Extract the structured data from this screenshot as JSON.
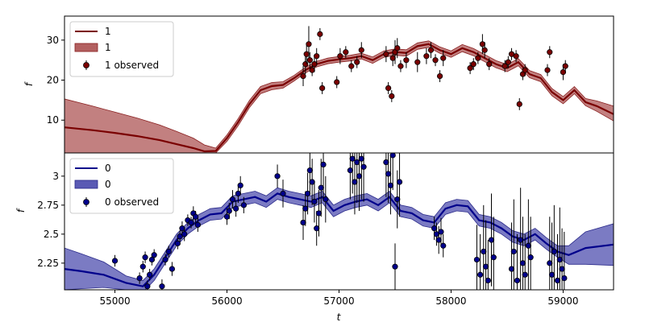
{
  "colors": {
    "red": "#7a0000",
    "red_fill": "#b36060",
    "blue": "#00008b",
    "blue_fill": "#5a5ab4"
  },
  "chart_data": [
    {
      "type": "line",
      "title": "",
      "xlabel": "",
      "ylabel": "f",
      "xlim": [
        54550,
        59450
      ],
      "ylim": [
        1.8,
        36
      ],
      "yticks": [
        10,
        20,
        30
      ],
      "grid": false,
      "legend_position": "top-left",
      "legend": [
        "1",
        "1",
        "1 observed"
      ],
      "series": [
        {
          "name": "1",
          "kind": "model-mean",
          "x": [
            54550,
            54800,
            55000,
            55200,
            55400,
            55550,
            55700,
            55800,
            55900,
            56000,
            56100,
            56200,
            56300,
            56400,
            56500,
            56600,
            56700,
            56800,
            56900,
            57000,
            57100,
            57200,
            57300,
            57400,
            57500,
            57600,
            57700,
            57800,
            57900,
            58000,
            58100,
            58200,
            58300,
            58400,
            58500,
            58600,
            58700,
            58800,
            58900,
            59000,
            59100,
            59200,
            59300,
            59450
          ],
          "y": [
            8.2,
            7.5,
            6.8,
            6.0,
            5.0,
            4.0,
            3.0,
            2.2,
            2.3,
            5.5,
            9.5,
            14.0,
            17.5,
            18.5,
            18.8,
            20.5,
            22.5,
            24.0,
            24.8,
            25.2,
            25.5,
            26.0,
            25.0,
            26.5,
            27.0,
            26.8,
            28.5,
            29.0,
            27.5,
            26.5,
            28.0,
            27.0,
            25.5,
            24.0,
            23.0,
            24.5,
            21.5,
            20.5,
            17.0,
            15.0,
            17.5,
            14.5,
            13.5,
            11.5
          ]
        },
        {
          "name": "1",
          "kind": "uncertainty-band",
          "x": [
            54550,
            54800,
            55000,
            55200,
            55400,
            55550,
            55700,
            55800,
            55900,
            56000,
            56100,
            56200,
            56300,
            56400,
            56500,
            56600,
            56700,
            56800,
            56900,
            57000,
            57100,
            57200,
            57300,
            57400,
            57500,
            57600,
            57700,
            57800,
            57900,
            58000,
            58100,
            58200,
            58300,
            58400,
            58500,
            58600,
            58700,
            58800,
            58900,
            59000,
            59100,
            59200,
            59300,
            59450
          ],
          "y_upper": [
            15.3,
            13.5,
            12.0,
            10.5,
            8.8,
            7.2,
            5.5,
            3.8,
            3.0,
            6.3,
            10.4,
            14.9,
            18.4,
            19.4,
            19.6,
            21.2,
            23.2,
            24.7,
            25.5,
            25.9,
            26.2,
            26.7,
            25.8,
            27.3,
            27.8,
            27.6,
            29.3,
            29.8,
            28.3,
            27.3,
            28.9,
            27.9,
            26.4,
            24.9,
            23.9,
            25.4,
            22.4,
            21.4,
            17.9,
            15.9,
            18.4,
            15.4,
            14.8,
            13.5
          ],
          "y_lower": [
            1.8,
            1.8,
            1.8,
            1.8,
            1.8,
            1.8,
            1.8,
            1.8,
            1.8,
            4.7,
            8.6,
            13.1,
            16.6,
            17.6,
            18.0,
            19.8,
            21.8,
            23.3,
            24.1,
            24.5,
            24.8,
            25.3,
            24.2,
            25.7,
            26.2,
            26.0,
            27.7,
            28.2,
            26.7,
            25.7,
            27.1,
            26.1,
            24.6,
            23.1,
            22.1,
            23.6,
            20.6,
            19.6,
            16.1,
            14.1,
            16.6,
            13.6,
            12.2,
            9.8
          ]
        },
        {
          "name": "1 observed",
          "kind": "observations",
          "x": [
            56680,
            56700,
            56710,
            56730,
            56740,
            56760,
            56780,
            56800,
            56830,
            56850,
            56980,
            57010,
            57060,
            57110,
            57160,
            57200,
            57420,
            57440,
            57470,
            57480,
            57500,
            57520,
            57550,
            57600,
            57700,
            57780,
            57820,
            57860,
            57900,
            57930,
            58170,
            58200,
            58240,
            58280,
            58300,
            58340,
            58480,
            58510,
            58540,
            58580,
            58610,
            58640,
            58660,
            58860,
            58880,
            59000,
            59020
          ],
          "y": [
            21.0,
            24.0,
            26.5,
            29.0,
            25.0,
            22.5,
            24.0,
            26.0,
            31.5,
            18.0,
            19.5,
            26.0,
            27.0,
            23.5,
            24.5,
            27.5,
            26.5,
            18.0,
            16.0,
            25.5,
            27.0,
            28.0,
            23.5,
            25.0,
            24.5,
            26.0,
            27.5,
            25.0,
            21.0,
            25.5,
            23.0,
            24.0,
            25.5,
            29.0,
            27.5,
            24.0,
            23.5,
            24.5,
            26.5,
            26.0,
            14.0,
            21.5,
            22.5,
            22.5,
            27.0,
            22.0,
            23.5
          ],
          "err": [
            2.5,
            2.5,
            2.5,
            4.5,
            2.0,
            1.5,
            2.0,
            2.0,
            1.5,
            1.5,
            1.5,
            2.0,
            1.5,
            1.5,
            1.5,
            2.0,
            2.0,
            1.5,
            1.5,
            2.0,
            3.0,
            2.5,
            1.5,
            2.0,
            2.5,
            2.0,
            2.0,
            1.5,
            1.5,
            2.0,
            1.5,
            1.5,
            1.5,
            2.5,
            2.0,
            1.5,
            1.5,
            1.5,
            1.5,
            1.5,
            1.5,
            1.5,
            1.5,
            1.5,
            1.5,
            2.0,
            1.5
          ]
        }
      ]
    },
    {
      "type": "line",
      "title": "",
      "xlabel": "t",
      "ylabel": "f",
      "xlim": [
        54550,
        59450
      ],
      "ylim": [
        2.02,
        3.2
      ],
      "xticks": [
        55000,
        56000,
        57000,
        58000,
        59000
      ],
      "yticks": [
        2.25,
        2.5,
        2.75,
        3.0
      ],
      "grid": false,
      "legend_position": "top-left",
      "legend": [
        "0",
        "0",
        "0 observed"
      ],
      "series": [
        {
          "name": "0",
          "kind": "model-mean",
          "x": [
            54550,
            54700,
            54900,
            55100,
            55250,
            55350,
            55450,
            55550,
            55650,
            55750,
            55850,
            55950,
            56050,
            56150,
            56250,
            56350,
            56450,
            56550,
            56650,
            56750,
            56850,
            56950,
            57050,
            57150,
            57250,
            57350,
            57450,
            57550,
            57650,
            57750,
            57850,
            57950,
            58050,
            58150,
            58250,
            58350,
            58450,
            58550,
            58650,
            58750,
            58850,
            58950,
            59050,
            59200,
            59450
          ],
          "y": [
            2.2,
            2.18,
            2.15,
            2.08,
            2.05,
            2.15,
            2.3,
            2.45,
            2.55,
            2.62,
            2.67,
            2.68,
            2.78,
            2.8,
            2.82,
            2.78,
            2.85,
            2.82,
            2.8,
            2.78,
            2.82,
            2.7,
            2.75,
            2.78,
            2.8,
            2.75,
            2.82,
            2.7,
            2.68,
            2.62,
            2.6,
            2.72,
            2.75,
            2.74,
            2.62,
            2.6,
            2.55,
            2.48,
            2.45,
            2.5,
            2.42,
            2.35,
            2.32,
            2.38,
            2.41
          ]
        },
        {
          "name": "0",
          "kind": "uncertainty-band",
          "x": [
            54550,
            54700,
            54900,
            55100,
            55250,
            55350,
            55450,
            55550,
            55650,
            55750,
            55850,
            55950,
            56050,
            56150,
            56250,
            56350,
            56450,
            56550,
            56650,
            56750,
            56850,
            56950,
            57050,
            57150,
            57250,
            57350,
            57450,
            57550,
            57650,
            57750,
            57850,
            57950,
            58050,
            58150,
            58250,
            58350,
            58450,
            58550,
            58650,
            58750,
            58850,
            58950,
            59050,
            59200,
            59450
          ],
          "y_upper": [
            2.38,
            2.33,
            2.26,
            2.14,
            2.1,
            2.2,
            2.35,
            2.5,
            2.6,
            2.67,
            2.72,
            2.73,
            2.83,
            2.85,
            2.87,
            2.83,
            2.9,
            2.87,
            2.85,
            2.83,
            2.87,
            2.75,
            2.8,
            2.83,
            2.85,
            2.8,
            2.87,
            2.75,
            2.73,
            2.67,
            2.65,
            2.77,
            2.8,
            2.79,
            2.67,
            2.65,
            2.6,
            2.53,
            2.5,
            2.55,
            2.47,
            2.4,
            2.4,
            2.52,
            2.59
          ],
          "y_lower": [
            2.02,
            2.03,
            2.04,
            2.02,
            2.0,
            2.1,
            2.25,
            2.4,
            2.5,
            2.57,
            2.62,
            2.63,
            2.73,
            2.75,
            2.77,
            2.73,
            2.8,
            2.77,
            2.75,
            2.73,
            2.77,
            2.65,
            2.7,
            2.73,
            2.75,
            2.7,
            2.77,
            2.65,
            2.63,
            2.57,
            2.55,
            2.67,
            2.7,
            2.69,
            2.57,
            2.55,
            2.5,
            2.43,
            2.4,
            2.45,
            2.37,
            2.3,
            2.24,
            2.24,
            2.23
          ]
        },
        {
          "name": "0 observed",
          "kind": "observations",
          "x": [
            55000,
            55220,
            55250,
            55270,
            55290,
            55310,
            55330,
            55350,
            55420,
            55450,
            55480,
            55510,
            55560,
            55580,
            55600,
            55620,
            55650,
            55680,
            55700,
            55720,
            55740,
            56000,
            56020,
            56050,
            56080,
            56100,
            56120,
            56150,
            56450,
            56500,
            56680,
            56700,
            56720,
            56740,
            56760,
            56780,
            56800,
            56820,
            56840,
            56860,
            56880,
            57100,
            57120,
            57140,
            57160,
            57180,
            57200,
            57220,
            57420,
            57440,
            57460,
            57480,
            57500,
            57520,
            57540,
            57850,
            57870,
            57890,
            57910,
            57930,
            58230,
            58260,
            58290,
            58310,
            58330,
            58360,
            58380,
            58540,
            58560,
            58590,
            58620,
            58640,
            58660,
            58690,
            58710,
            58880,
            58900,
            58920,
            58950,
            58970,
            58990,
            59010
          ],
          "y": [
            2.27,
            2.12,
            2.22,
            2.3,
            2.05,
            2.15,
            2.28,
            2.32,
            2.05,
            2.28,
            2.35,
            2.2,
            2.42,
            2.48,
            2.55,
            2.5,
            2.62,
            2.6,
            2.68,
            2.65,
            2.58,
            2.65,
            2.7,
            2.8,
            2.72,
            2.85,
            2.92,
            2.75,
            3.0,
            2.85,
            2.6,
            2.72,
            2.85,
            3.05,
            2.95,
            2.78,
            2.55,
            2.68,
            2.9,
            3.1,
            2.8,
            3.05,
            3.15,
            2.95,
            3.12,
            3.0,
            3.15,
            3.08,
            3.12,
            3.02,
            2.92,
            3.18,
            2.22,
            2.8,
            2.95,
            2.55,
            2.5,
            2.45,
            2.52,
            2.4,
            2.28,
            2.15,
            2.35,
            2.22,
            2.1,
            2.45,
            2.3,
            2.2,
            2.35,
            2.1,
            2.45,
            2.25,
            2.15,
            2.4,
            2.3,
            2.25,
            2.15,
            2.35,
            2.1,
            2.28,
            2.2,
            2.12
          ],
          "err": [
            0.05,
            0.05,
            0.05,
            0.05,
            0.05,
            0.05,
            0.05,
            0.05,
            0.06,
            0.05,
            0.05,
            0.06,
            0.05,
            0.05,
            0.06,
            0.06,
            0.05,
            0.05,
            0.06,
            0.05,
            0.06,
            0.07,
            0.07,
            0.08,
            0.07,
            0.08,
            0.08,
            0.07,
            0.1,
            0.12,
            0.15,
            0.15,
            0.18,
            0.2,
            0.2,
            0.18,
            0.15,
            0.2,
            0.25,
            0.3,
            0.2,
            0.25,
            0.3,
            0.28,
            0.35,
            0.3,
            0.35,
            0.3,
            0.3,
            0.25,
            0.25,
            0.3,
            0.2,
            0.25,
            0.3,
            0.1,
            0.1,
            0.12,
            0.12,
            0.1,
            0.3,
            0.35,
            0.4,
            0.4,
            0.35,
            0.4,
            0.35,
            0.4,
            0.45,
            0.4,
            0.45,
            0.4,
            0.35,
            0.4,
            0.35,
            0.4,
            0.45,
            0.4,
            0.4,
            0.45,
            0.35,
            0.4
          ]
        }
      ]
    }
  ]
}
